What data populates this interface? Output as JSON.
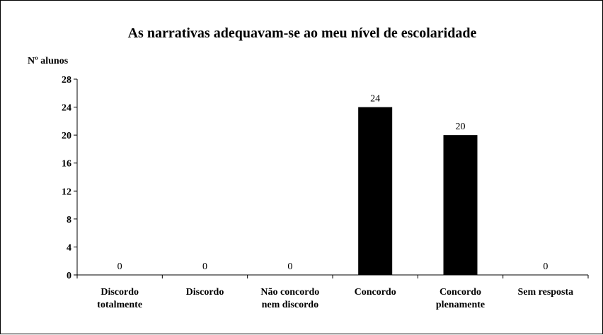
{
  "chart_data": {
    "type": "bar",
    "title": "As narrativas adequavam-se ao meu nível de escolaridade",
    "ylabel": "Nº alunos",
    "xlabel": "",
    "ylim": [
      0,
      28
    ],
    "yticks": [
      0,
      4,
      8,
      12,
      16,
      20,
      24,
      28
    ],
    "categories": [
      [
        "Discordo",
        "totalmente"
      ],
      [
        "Discordo"
      ],
      [
        "Não concordo",
        "nem discordo"
      ],
      [
        "Concordo"
      ],
      [
        "Concordo",
        "plenamente"
      ],
      [
        "Sem resposta"
      ]
    ],
    "values": [
      0,
      0,
      0,
      24,
      20,
      0
    ],
    "data_labels": [
      "0",
      "0",
      "0",
      "24",
      "20",
      "0"
    ],
    "bar_color": "#000000",
    "grid": false,
    "legend": "none"
  }
}
